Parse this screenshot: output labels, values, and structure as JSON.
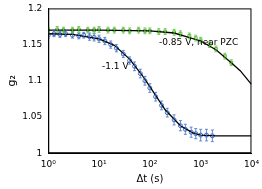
{
  "chart_data": {
    "type": "scatter",
    "x_label": "Δt (s)",
    "y_label": "g₂",
    "log": "x",
    "grid": false,
    "xlim": [
      1,
      10000
    ],
    "xticks": [
      {
        "value": 1,
        "label": "10⁰"
      },
      {
        "value": 10,
        "label": "10¹"
      },
      {
        "value": 100,
        "label": "10²"
      },
      {
        "value": 1000,
        "label": "10³"
      },
      {
        "value": 10000,
        "label": "10⁴"
      }
    ],
    "ylim": [
      1,
      1.2
    ],
    "yticks": [
      1,
      1.05,
      1.1,
      1.15,
      1.2
    ],
    "series": [
      {
        "name": "-1.1 V",
        "color": "#3f6fc8",
        "marker": "circle",
        "x": [
          1,
          1.3,
          1.7,
          2.2,
          3,
          4,
          5,
          6.5,
          8,
          10,
          13,
          17,
          22,
          30,
          40,
          50,
          65,
          80,
          100,
          130,
          170,
          220,
          300,
          400,
          500,
          650,
          800,
          1000,
          1300,
          1700
        ],
        "values": [
          1.163,
          1.165,
          1.164,
          1.165,
          1.163,
          1.162,
          1.163,
          1.161,
          1.16,
          1.158,
          1.155,
          1.15,
          1.145,
          1.137,
          1.128,
          1.12,
          1.11,
          1.1,
          1.09,
          1.078,
          1.066,
          1.056,
          1.046,
          1.038,
          1.033,
          1.029,
          1.027,
          1.025,
          1.025,
          1.024
        ],
        "errors": [
          0.004,
          0.004,
          0.004,
          0.004,
          0.004,
          0.004,
          0.004,
          0.005,
          0.005,
          0.005,
          0.005,
          0.005,
          0.005,
          0.005,
          0.005,
          0.006,
          0.006,
          0.006,
          0.006,
          0.006,
          0.006,
          0.006,
          0.007,
          0.007,
          0.007,
          0.007,
          0.007,
          0.008,
          0.008,
          0.008
        ]
      },
      {
        "name": "-0.85 V, near PZC",
        "color": "#5cbf3a",
        "marker": "square",
        "x": [
          1,
          1.5,
          2,
          3,
          4,
          6,
          8,
          10,
          15,
          20,
          30,
          40,
          60,
          80,
          100,
          150,
          200,
          300,
          400,
          600,
          800,
          1000,
          1500,
          2000,
          3000,
          4000
        ],
        "values": [
          1.17,
          1.171,
          1.17,
          1.17,
          1.171,
          1.17,
          1.17,
          1.171,
          1.17,
          1.17,
          1.17,
          1.169,
          1.17,
          1.169,
          1.169,
          1.168,
          1.168,
          1.167,
          1.165,
          1.162,
          1.159,
          1.156,
          1.15,
          1.144,
          1.134,
          1.125
        ],
        "errors": [
          0.004,
          0.004,
          0.004,
          0.004,
          0.004,
          0.004,
          0.004,
          0.004,
          0.004,
          0.004,
          0.004,
          0.004,
          0.004,
          0.004,
          0.004,
          0.004,
          0.004,
          0.004,
          0.004,
          0.004,
          0.004,
          0.004,
          0.004,
          0.004,
          0.004,
          0.004
        ]
      },
      {
        "type": "line",
        "color": "#000000",
        "marker": "none",
        "line_style": "solid",
        "x": [
          1,
          3,
          10,
          20,
          40,
          70,
          100,
          200,
          400,
          700,
          1000,
          2000,
          5000,
          10000
        ],
        "values": [
          1.165,
          1.164,
          1.158,
          1.149,
          1.13,
          1.108,
          1.092,
          1.06,
          1.038,
          1.028,
          1.025,
          1.024,
          1.024,
          1.024
        ]
      },
      {
        "type": "line",
        "color": "#000000",
        "marker": "none",
        "line_style": "solid",
        "x": [
          1,
          10,
          100,
          300,
          1000,
          2000,
          4000,
          6000,
          10000
        ],
        "values": [
          1.17,
          1.17,
          1.169,
          1.166,
          1.155,
          1.143,
          1.125,
          1.114,
          1.095
        ]
      }
    ]
  }
}
